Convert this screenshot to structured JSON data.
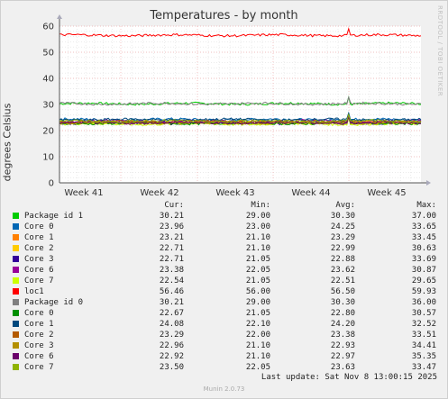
{
  "chart_data": {
    "type": "line",
    "title": "Temperatures - by month",
    "ylabel": "degrees Celsius",
    "ylim": [
      0,
      60
    ],
    "yticks": [
      0,
      10,
      20,
      30,
      40,
      50,
      60
    ],
    "xticks": [
      "Week 41",
      "Week 42",
      "Week 43",
      "Week 44",
      "Week 45"
    ],
    "grid": true,
    "legend_position": "bottom",
    "legend_headers": [
      "Cur:",
      "Min:",
      "Avg:",
      "Max:"
    ],
    "series": [
      {
        "name": "Package id 1",
        "color": "#00cc00",
        "cur": "30.21",
        "min": "29.00",
        "avg": "30.30",
        "max": "37.00"
      },
      {
        "name": "Core 0",
        "color": "#0066b3",
        "cur": "23.96",
        "min": "23.00",
        "avg": "24.25",
        "max": "33.65"
      },
      {
        "name": "Core 1",
        "color": "#ff8000",
        "cur": "23.21",
        "min": "21.10",
        "avg": "23.29",
        "max": "33.45"
      },
      {
        "name": "Core 2",
        "color": "#ffcc00",
        "cur": "22.71",
        "min": "21.10",
        "avg": "22.99",
        "max": "30.63"
      },
      {
        "name": "Core 3",
        "color": "#330099",
        "cur": "22.71",
        "min": "21.05",
        "avg": "22.88",
        "max": "33.69"
      },
      {
        "name": "Core 6",
        "color": "#990099",
        "cur": "23.38",
        "min": "22.05",
        "avg": "23.62",
        "max": "30.87"
      },
      {
        "name": "Core 7",
        "color": "#ccff00",
        "cur": "22.54",
        "min": "21.05",
        "avg": "22.51",
        "max": "29.65"
      },
      {
        "name": "loc1",
        "color": "#ff0000",
        "cur": "56.46",
        "min": "56.00",
        "avg": "56.50",
        "max": "59.93"
      },
      {
        "name": "Package id 0",
        "color": "#808080",
        "cur": "30.21",
        "min": "29.00",
        "avg": "30.30",
        "max": "36.00"
      },
      {
        "name": "Core 0",
        "color": "#008f00",
        "cur": "22.67",
        "min": "21.05",
        "avg": "22.80",
        "max": "30.57"
      },
      {
        "name": "Core 1",
        "color": "#00487d",
        "cur": "24.08",
        "min": "22.10",
        "avg": "24.20",
        "max": "32.52"
      },
      {
        "name": "Core 2",
        "color": "#b35a00",
        "cur": "23.29",
        "min": "22.00",
        "avg": "23.38",
        "max": "33.51"
      },
      {
        "name": "Core 3",
        "color": "#b38f00",
        "cur": "22.96",
        "min": "21.10",
        "avg": "22.93",
        "max": "34.41"
      },
      {
        "name": "Core 6",
        "color": "#6b006b",
        "cur": "22.92",
        "min": "21.10",
        "avg": "22.97",
        "max": "35.35"
      },
      {
        "name": "Core 7",
        "color": "#8fb300",
        "cur": "23.50",
        "min": "22.05",
        "avg": "23.63",
        "max": "33.47"
      }
    ]
  },
  "watermark": "RRDTOOL / TOBI OETIKER",
  "last_update": "Last update: Sat Nov  8 13:00:15 2025",
  "munin_version": "Munin 2.0.73"
}
